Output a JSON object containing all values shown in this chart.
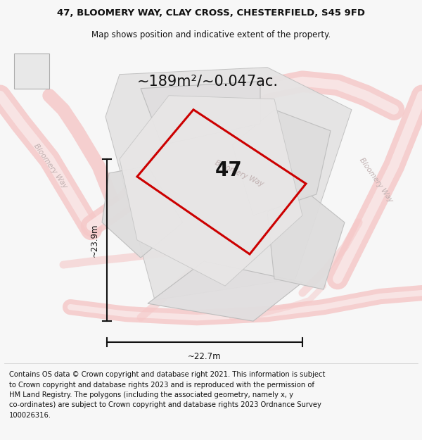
{
  "title_line1": "47, BLOOMERY WAY, CLAY CROSS, CHESTERFIELD, S45 9FD",
  "title_line2": "Map shows position and indicative extent of the property.",
  "area_text": "~189m²/~0.047ac.",
  "property_number": "47",
  "width_label": "~22.7m",
  "height_label": "~23.9m",
  "footer_lines": [
    "Contains OS data © Crown copyright and database right 2021. This information is subject",
    "to Crown copyright and database rights 2023 and is reproduced with the permission of",
    "HM Land Registry. The polygons (including the associated geometry, namely x, y",
    "co-ordinates) are subject to Crown copyright and database rights 2023 Ordnance Survey",
    "100026316."
  ],
  "bg_color": "#f7f7f7",
  "map_bg": "#eeeded",
  "parcel_fill": "#e2e0e0",
  "parcel_edge": "#c8c8c8",
  "road_fill": "#f5c8c8",
  "road_edge": "#eeaaaa",
  "red_outline": "#cc0000",
  "black": "#111111",
  "road_text_color": "#c0b0b0",
  "title_fontsize": 9.5,
  "subtitle_fontsize": 8.5,
  "area_fontsize": 15,
  "number_fontsize": 20,
  "footer_fontsize": 7.2,
  "dim_fontsize": 8.5
}
